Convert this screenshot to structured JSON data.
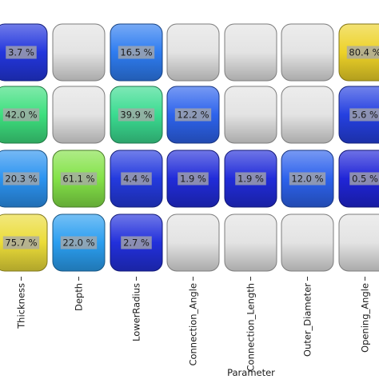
{
  "chart_data": {
    "type": "heatmap",
    "xlabel": "Parameter",
    "x_categories": [
      "Thickness",
      "Depth",
      "LowerRadius",
      "Connection_Angle",
      "Connection_Length",
      "Outer_Diameter",
      "Opening_Angle"
    ],
    "grid": false,
    "legend": "none",
    "cell_colormap": [
      "#1f22d6",
      "#2f6ef0",
      "#27c4f0",
      "#3ee07a",
      "#57e047",
      "#e8e64a",
      "#f0c818"
    ],
    "empty_cell_color": "#e3e3e3",
    "rows": [
      {
        "values": [
          3.7,
          null,
          16.5,
          null,
          null,
          null,
          80.4
        ],
        "labels": [
          "3.7 %",
          "",
          "16.5 %",
          "",
          "",
          "",
          "80.4 %"
        ]
      },
      {
        "values": [
          42.0,
          null,
          39.9,
          12.2,
          null,
          null,
          5.6
        ],
        "labels": [
          "42.0 %",
          "",
          "39.9 %",
          "12.2 %",
          "",
          "",
          "5.6 %"
        ]
      },
      {
        "values": [
          20.3,
          61.1,
          4.4,
          1.9,
          1.9,
          12.0,
          0.5
        ],
        "labels": [
          "20.3 %",
          "61.1 %",
          "4.4 %",
          "1.9 %",
          "1.9 %",
          "12.0 %",
          "0.5 %"
        ]
      },
      {
        "values": [
          75.7,
          22.0,
          2.7,
          null,
          null,
          null,
          null
        ],
        "labels": [
          "75.7 %",
          "22.0 %",
          "2.7 %",
          "",
          "",
          "",
          ""
        ]
      }
    ]
  }
}
